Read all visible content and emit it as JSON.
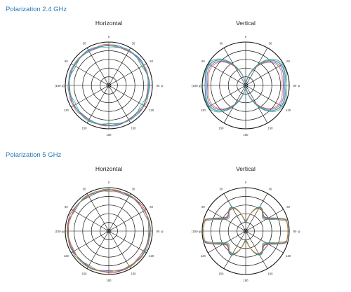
{
  "sections": [
    {
      "title": "Polarization 2.4 GHz",
      "plots": [
        {
          "title": "Horizontal"
        },
        {
          "title": "Vertical"
        }
      ]
    },
    {
      "title": "Polarization 5 GHz",
      "plots": [
        {
          "title": "Horizontal"
        },
        {
          "title": "Vertical"
        }
      ]
    }
  ],
  "chart_data": [
    {
      "type": "polar-line",
      "title": "Horizontal",
      "section": "Polarization 2.4 GHz",
      "angle_labels": [
        "0",
        "30",
        "60",
        "90",
        "120",
        "150",
        "180",
        "150",
        "120",
        "(180-φ)",
        "60",
        "30"
      ],
      "radial_range": [
        -40,
        0
      ],
      "radial_rings": 5,
      "series_colors": [
        "#3f72b8",
        "#7a4fa0",
        "#3aa06a",
        "#d06050",
        "#3aa8c8"
      ],
      "pattern": "omni",
      "series": [
        {
          "values": [
            0.93,
            0.93,
            0.93,
            0.93,
            0.93,
            0.93,
            0.93,
            0.93,
            0.93,
            0.93,
            0.93,
            0.93
          ]
        },
        {
          "values": [
            0.92,
            0.91,
            0.92,
            0.9,
            0.92,
            0.91,
            0.92,
            0.9,
            0.92,
            0.91,
            0.92,
            0.9
          ]
        },
        {
          "values": [
            0.9,
            0.92,
            0.89,
            0.93,
            0.9,
            0.91,
            0.89,
            0.93,
            0.9,
            0.92,
            0.89,
            0.93
          ]
        },
        {
          "values": [
            0.94,
            0.9,
            0.93,
            0.91,
            0.94,
            0.9,
            0.93,
            0.91,
            0.94,
            0.9,
            0.93,
            0.91
          ]
        },
        {
          "values": [
            0.88,
            0.93,
            0.91,
            0.92,
            0.88,
            0.93,
            0.91,
            0.92,
            0.88,
            0.93,
            0.91,
            0.92
          ]
        }
      ]
    },
    {
      "type": "polar-line",
      "title": "Vertical",
      "section": "Polarization 2.4 GHz",
      "angle_labels": [
        "0",
        "30",
        "60",
        "90",
        "120",
        "150",
        "180",
        "150",
        "120",
        "(180-φ)",
        "60",
        "30"
      ],
      "radial_range": [
        -40,
        0
      ],
      "radial_rings": 5,
      "series_colors": [
        "#3f72b8",
        "#7a4fa0",
        "#3aa06a",
        "#d06050",
        "#3aa8c8"
      ],
      "pattern": "butterfly",
      "series": [
        {
          "lobe": [
            0.92,
            0.75,
            0.55
          ]
        },
        {
          "lobe": [
            0.88,
            0.78,
            0.52
          ]
        },
        {
          "lobe": [
            0.95,
            0.72,
            0.58
          ]
        },
        {
          "lobe": [
            0.85,
            0.8,
            0.5
          ]
        },
        {
          "lobe": [
            0.9,
            0.7,
            0.56
          ]
        }
      ]
    },
    {
      "type": "polar-line",
      "title": "Horizontal",
      "section": "Polarization 5 GHz",
      "angle_labels": [
        "0",
        "30",
        "60",
        "90",
        "120",
        "150",
        "180",
        "150",
        "120",
        "(180-φ)",
        "60",
        "30"
      ],
      "radial_range": [
        -40,
        0
      ],
      "radial_rings": 5,
      "series_colors": [
        "#c03050",
        "#3f72b8",
        "#7a4fa0",
        "#3aa06a",
        "#d08030"
      ],
      "pattern": "omni",
      "series": [
        {
          "values": [
            0.95,
            0.94,
            0.96,
            0.93,
            0.95,
            0.94,
            0.96,
            0.93,
            0.95,
            0.94,
            0.96,
            0.93
          ]
        },
        {
          "values": [
            0.93,
            0.96,
            0.92,
            0.95,
            0.93,
            0.96,
            0.92,
            0.95,
            0.93,
            0.96,
            0.92,
            0.95
          ]
        },
        {
          "values": [
            0.94,
            0.92,
            0.95,
            0.94,
            0.91,
            0.95,
            0.93,
            0.94,
            0.92,
            0.95,
            0.94,
            0.92
          ]
        },
        {
          "values": [
            0.96,
            0.93,
            0.94,
            0.92,
            0.96,
            0.93,
            0.94,
            0.92,
            0.96,
            0.93,
            0.94,
            0.92
          ]
        },
        {
          "values": [
            0.92,
            0.95,
            0.93,
            0.96,
            0.92,
            0.95,
            0.93,
            0.96,
            0.92,
            0.95,
            0.93,
            0.96
          ]
        }
      ]
    },
    {
      "type": "polar-line",
      "title": "Vertical",
      "section": "Polarization 5 GHz",
      "angle_labels": [
        "0",
        "30",
        "60",
        "90",
        "120",
        "150",
        "180",
        "150",
        "120",
        "(180-φ)",
        "60",
        "30"
      ],
      "radial_range": [
        -40,
        0
      ],
      "radial_rings": 5,
      "series_colors": [
        "#c03050",
        "#3f72b8",
        "#7a4fa0",
        "#3aa06a",
        "#d08030"
      ],
      "pattern": "multilobe",
      "series": [
        {
          "lobe": [
            0.9,
            0.55,
            0.45
          ]
        },
        {
          "lobe": [
            0.85,
            0.6,
            0.4
          ]
        },
        {
          "lobe": [
            0.92,
            0.5,
            0.48
          ]
        },
        {
          "lobe": [
            0.8,
            0.58,
            0.42
          ]
        },
        {
          "lobe": [
            0.88,
            0.52,
            0.46
          ]
        }
      ]
    }
  ]
}
